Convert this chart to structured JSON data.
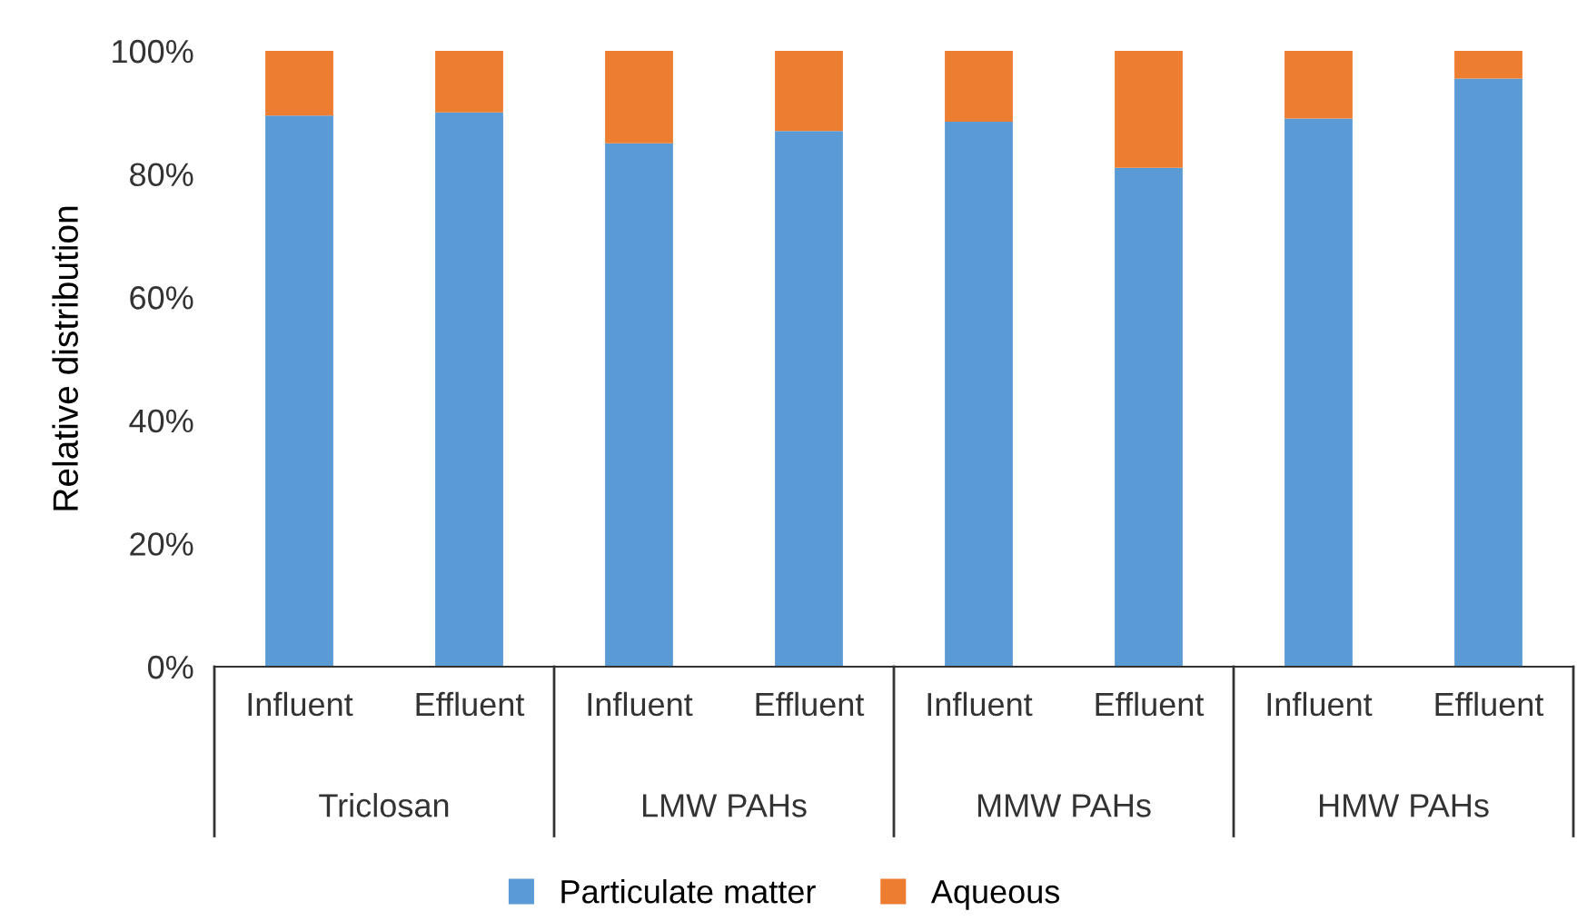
{
  "chart_data": {
    "type": "bar",
    "stacked": true,
    "ylabel": "Relative distribution",
    "categories": [
      "Influent",
      "Effluent",
      "Influent",
      "Effluent",
      "Influent",
      "Effluent",
      "Influent",
      "Effluent"
    ],
    "series": [
      {
        "name": "Particulate matter",
        "color": "#5b9bd5",
        "values": [
          89.5,
          90,
          85,
          87,
          88.5,
          81,
          89,
          95.5
        ]
      },
      {
        "name": "Aqueous",
        "color": "#ed7d31",
        "values": [
          10.5,
          10,
          15,
          13,
          11.5,
          19,
          11,
          4.5
        ]
      }
    ],
    "annotations": [
      "Triclosan",
      "LMW PAHs",
      "MMW PAHs",
      "HMW PAHs"
    ],
    "ylim": [
      0,
      100
    ],
    "yticks": [
      {
        "value": 0,
        "label": "0%"
      },
      {
        "value": 20,
        "label": "20%"
      },
      {
        "value": 40,
        "label": "40%"
      },
      {
        "value": 60,
        "label": "60%"
      },
      {
        "value": 80,
        "label": "80%"
      },
      {
        "value": 100,
        "label": "100%"
      }
    ],
    "grid": false,
    "legend": "bottom"
  }
}
